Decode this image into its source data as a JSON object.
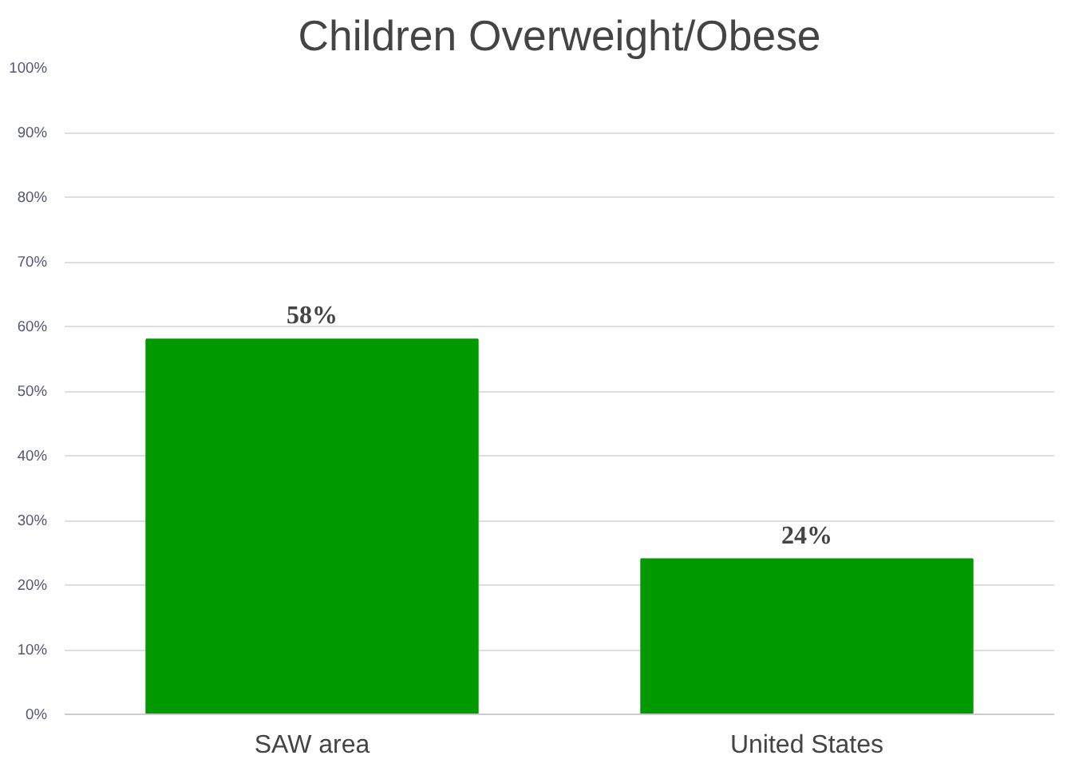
{
  "chart_data": {
    "type": "bar",
    "title": "Children Overweight/Obese",
    "categories": [
      "SAW area",
      "United States"
    ],
    "values": [
      58,
      24
    ],
    "value_labels": [
      "58%",
      "24%"
    ],
    "color": "#009900",
    "ylim": [
      0,
      100
    ],
    "yticks": [
      {
        "value": 0,
        "label": "0%"
      },
      {
        "value": 10,
        "label": "10%"
      },
      {
        "value": 20,
        "label": "20%"
      },
      {
        "value": 30,
        "label": "30%"
      },
      {
        "value": 40,
        "label": "40%"
      },
      {
        "value": 50,
        "label": "50%"
      },
      {
        "value": 60,
        "label": "60%"
      },
      {
        "value": 70,
        "label": "70%"
      },
      {
        "value": 80,
        "label": "80%"
      },
      {
        "value": 90,
        "label": "90%"
      },
      {
        "value": 100,
        "label": "100%"
      }
    ],
    "grid": "y"
  }
}
